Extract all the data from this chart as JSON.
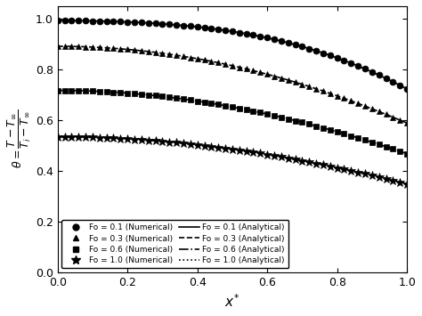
{
  "title": "",
  "xlabel": "$x^{*}$",
  "ylabel": "$\\theta = \\dfrac{T - T_\\infty}{T_i - T_\\infty}$",
  "xlim": [
    0.0,
    1.0
  ],
  "ylim": [
    0.0,
    1.05
  ],
  "Fo_values": [
    0.1,
    0.3,
    0.6,
    1.0
  ],
  "markers": [
    "o",
    "^",
    "s",
    "*"
  ],
  "linestyles_analytical": [
    "-",
    "--",
    "-.",
    ":"
  ],
  "color": "black",
  "marker_sizes": [
    5,
    5,
    5,
    7
  ],
  "legend_labels_num": [
    "Fo = 0.1 (Numerical)",
    "Fo = 0.3 (Numerical)",
    "Fo = 0.6 (Numerical)",
    "Fo = 1.0 (Numerical)"
  ],
  "legend_labels_ana": [
    "Fo = 0.1 (Analytical)",
    "Fo = 0.3 (Analytical)",
    "Fo = 0.6 (Analytical)",
    "Fo = 1.0 (Analytical)"
  ],
  "n_terms": 40,
  "Bi": 1.0,
  "xticks": [
    0.0,
    0.2,
    0.4,
    0.6,
    0.8,
    1.0
  ],
  "yticks": [
    0.0,
    0.2,
    0.4,
    0.6,
    0.8,
    1.0
  ],
  "background_color": "#ffffff"
}
